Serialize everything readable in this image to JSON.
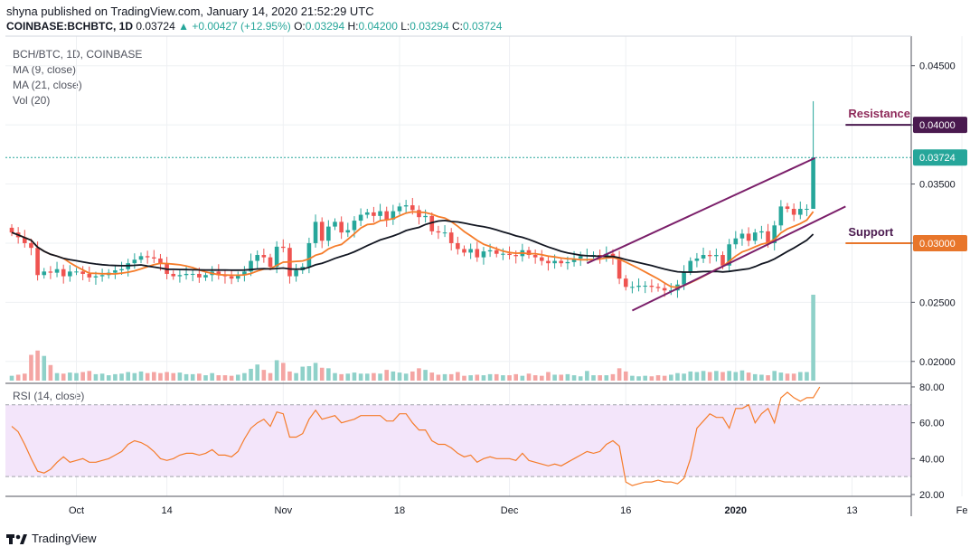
{
  "header": {
    "published": "shyna published on TradingView.com, January 14, 2020 21:52:29 UTC",
    "symbol": "COINBASE:BCHBTC, 1D",
    "last": "0.03724",
    "change": "+0.00427 (+12.95%)",
    "o_label": "O:",
    "o": "0.03294",
    "h_label": "H:",
    "h": "0.04200",
    "l_label": "L:",
    "l": "0.03294",
    "c_label": "C:",
    "c": "0.03724"
  },
  "legend": {
    "pair": "BCH/BTC, 1D, COINBASE",
    "ma9": "MA (9, close)",
    "ma21": "MA (21, close)",
    "vol": "Vol (20)",
    "rsi": "RSI (14, close)"
  },
  "annotations": {
    "resistance": "Resistance",
    "support": "Support",
    "resistance_tag": "0.04000",
    "support_tag": "0.03000",
    "price_tag": "0.03724"
  },
  "footer": {
    "brand": "TradingView"
  },
  "colors": {
    "up": "#26a69a",
    "down": "#ef5350",
    "ma9": "#f57c2a",
    "ma21": "#131722",
    "channel": "#7b1f6a",
    "resistance": "#4a1a4f",
    "support": "#e8762b",
    "rsi_line": "#f57c2a",
    "rsi_band": "#f3e5fa"
  },
  "chart_data": [
    {
      "type": "candlestick",
      "title": "BCH/BTC, 1D, COINBASE",
      "y_ticks": [
        "0.04500",
        "0.04000",
        "0.03500",
        "0.03000",
        "0.02500",
        "0.02000"
      ],
      "x_ticks": [
        "Oct",
        "14",
        "Nov",
        "18",
        "Dec",
        "16",
        "2020",
        "13",
        "Fe"
      ],
      "ylim": [
        0.0183,
        0.0475
      ],
      "levels": {
        "resistance": 0.04,
        "support": 0.03,
        "last": 0.03724
      },
      "close": [
        0.0309,
        0.0305,
        0.03,
        0.0296,
        0.0273,
        0.0276,
        0.0275,
        0.0278,
        0.0272,
        0.0276,
        0.0276,
        0.0274,
        0.0271,
        0.0272,
        0.0273,
        0.0275,
        0.0277,
        0.0278,
        0.0283,
        0.0286,
        0.0289,
        0.0288,
        0.0287,
        0.0283,
        0.0274,
        0.0272,
        0.0273,
        0.0274,
        0.0274,
        0.0271,
        0.0273,
        0.0276,
        0.0273,
        0.0272,
        0.027,
        0.0273,
        0.0276,
        0.0285,
        0.029,
        0.0288,
        0.028,
        0.0297,
        0.0296,
        0.0272,
        0.0277,
        0.028,
        0.03,
        0.0318,
        0.0302,
        0.0314,
        0.0318,
        0.0309,
        0.0311,
        0.0319,
        0.0324,
        0.0326,
        0.0323,
        0.0327,
        0.032,
        0.0327,
        0.0331,
        0.0332,
        0.0328,
        0.0322,
        0.0323,
        0.031,
        0.0309,
        0.0309,
        0.03,
        0.0295,
        0.0292,
        0.0295,
        0.0288,
        0.0293,
        0.0294,
        0.0291,
        0.0291,
        0.029,
        0.0289,
        0.0294,
        0.029,
        0.0288,
        0.0285,
        0.0283,
        0.0285,
        0.0283,
        0.0284,
        0.0287,
        0.0289,
        0.029,
        0.029,
        0.0288,
        0.0291,
        0.0288,
        0.027,
        0.0263,
        0.0263,
        0.0264,
        0.0264,
        0.0263,
        0.0262,
        0.026,
        0.026,
        0.0265,
        0.0276,
        0.0285,
        0.0287,
        0.029,
        0.0289,
        0.029,
        0.0281,
        0.0299,
        0.0304,
        0.0308,
        0.0302,
        0.0309,
        0.031,
        0.03,
        0.0315,
        0.0331,
        0.0329,
        0.0324,
        0.0329,
        0.0329,
        0.03724
      ]
    },
    {
      "type": "bar",
      "title": "Vol (20)",
      "values": [
        0.9,
        1.1,
        1.3,
        4.8,
        5.6,
        4.6,
        2.9,
        1.4,
        1.3,
        1.5,
        1.4,
        1.6,
        1.8,
        1.2,
        1.3,
        1.0,
        1.2,
        1.3,
        1.6,
        1.4,
        1.7,
        1.4,
        1.6,
        1.4,
        1.6,
        1.4,
        1.5,
        1.2,
        1.2,
        1.3,
        1.0,
        1.4,
        1.0,
        1.0,
        0.9,
        1.1,
        1.4,
        2.2,
        3.0,
        2.0,
        1.4,
        3.8,
        3.3,
        1.7,
        1.4,
        2.6,
        2.7,
        3.3,
        2.4,
        2.3,
        1.4,
        1.2,
        1.3,
        1.5,
        1.3,
        1.3,
        1.4,
        1.3,
        2.0,
        1.7,
        1.5,
        1.3,
        1.7,
        2.3,
        2.0,
        1.5,
        1.1,
        1.2,
        1.2,
        1.6,
        0.9,
        1.0,
        1.1,
        1.0,
        1.2,
        1.2,
        1.0,
        1.0,
        1.2,
        0.9,
        1.3,
        1.0,
        0.9,
        1.6,
        1.1,
        1.1,
        1.2,
        1.0,
        0.8,
        1.8,
        1.0,
        1.0,
        1.0,
        1.2,
        2.3,
        1.7,
        0.9,
        0.8,
        0.9,
        0.8,
        1.0,
        0.9,
        1.1,
        1.4,
        1.3,
        1.7,
        1.6,
        1.8,
        1.6,
        1.8,
        1.6,
        1.8,
        1.6,
        1.9,
        1.5,
        1.2,
        1.1,
        1.0,
        1.8,
        1.5,
        1.3,
        1.3,
        1.6,
        1.6,
        16.0
      ]
    },
    {
      "type": "line",
      "title": "RSI (14, close)",
      "y_ticks": [
        "80.00",
        "60.00",
        "40.00",
        "20.00"
      ],
      "ylim": [
        19,
        82
      ],
      "band": [
        30,
        70
      ],
      "values": [
        58,
        55,
        48,
        40,
        33,
        32,
        34,
        38,
        41,
        38,
        39,
        40,
        38,
        38,
        39,
        40,
        42,
        44,
        48,
        50,
        49,
        47,
        44,
        40,
        39,
        40,
        42,
        43,
        43,
        42,
        43,
        45,
        42,
        42,
        41,
        44,
        51,
        57,
        60,
        62,
        58,
        66,
        65,
        52,
        52,
        54,
        62,
        67,
        62,
        63,
        64,
        60,
        61,
        62,
        64,
        64,
        64,
        64,
        61,
        61,
        65,
        65,
        60,
        56,
        56,
        50,
        48,
        48,
        46,
        43,
        41,
        42,
        38,
        40,
        41,
        40,
        40,
        40,
        39,
        43,
        39,
        38,
        37,
        36,
        37,
        36,
        38,
        40,
        42,
        44,
        43,
        44,
        48,
        50,
        47,
        27,
        25,
        26,
        27,
        27,
        28,
        27,
        27,
        26,
        29,
        40,
        57,
        61,
        65,
        63,
        63,
        57,
        68,
        68,
        70,
        60,
        65,
        68,
        60,
        74,
        77,
        74,
        72,
        74,
        74,
        80
      ]
    }
  ]
}
